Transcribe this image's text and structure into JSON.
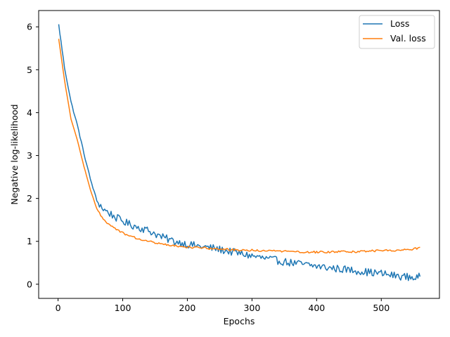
{
  "chart_data": {
    "type": "line",
    "xlabel": "Epochs",
    "ylabel": "Negative log-likelihood",
    "xlim": [
      -30,
      590
    ],
    "ylim": [
      -0.33,
      6.38
    ],
    "xticks": [
      0,
      100,
      200,
      300,
      400,
      500
    ],
    "yticks": [
      0,
      1,
      2,
      3,
      4,
      5,
      6
    ],
    "grid": false,
    "legend_position": "top-right",
    "series": [
      {
        "name": "Loss",
        "color": "#1f77b4",
        "noise_amplitude": 0.09,
        "x": [
          1,
          10,
          20,
          30,
          40,
          50,
          60,
          70,
          80,
          90,
          100,
          110,
          120,
          130,
          140,
          150,
          160,
          170,
          180,
          190,
          200,
          220,
          240,
          260,
          280,
          300,
          320,
          340,
          360,
          380,
          400,
          420,
          440,
          460,
          480,
          500,
          520,
          540,
          555,
          560
        ],
        "values": [
          6.05,
          5.05,
          4.25,
          3.7,
          3.05,
          2.45,
          1.95,
          1.75,
          1.65,
          1.55,
          1.47,
          1.4,
          1.35,
          1.3,
          1.25,
          1.18,
          1.1,
          1.05,
          1.0,
          0.97,
          0.93,
          0.88,
          0.84,
          0.78,
          0.72,
          0.66,
          0.6,
          0.55,
          0.5,
          0.46,
          0.42,
          0.38,
          0.35,
          0.32,
          0.28,
          0.25,
          0.2,
          0.17,
          0.15,
          0.18
        ]
      },
      {
        "name": "Val. loss",
        "color": "#ff7f0e",
        "noise_amplitude": 0.025,
        "x": [
          1,
          10,
          20,
          30,
          40,
          50,
          60,
          70,
          80,
          90,
          100,
          110,
          120,
          130,
          140,
          150,
          160,
          170,
          180,
          190,
          200,
          220,
          240,
          260,
          280,
          300,
          320,
          340,
          360,
          380,
          400,
          420,
          440,
          460,
          480,
          500,
          520,
          540,
          555,
          560
        ],
        "values": [
          5.72,
          4.75,
          3.85,
          3.35,
          2.75,
          2.2,
          1.75,
          1.5,
          1.38,
          1.28,
          1.2,
          1.13,
          1.08,
          1.04,
          1.0,
          0.96,
          0.93,
          0.91,
          0.89,
          0.88,
          0.87,
          0.85,
          0.83,
          0.81,
          0.8,
          0.79,
          0.78,
          0.77,
          0.76,
          0.75,
          0.75,
          0.75,
          0.76,
          0.76,
          0.77,
          0.78,
          0.79,
          0.81,
          0.83,
          0.86
        ]
      }
    ]
  }
}
